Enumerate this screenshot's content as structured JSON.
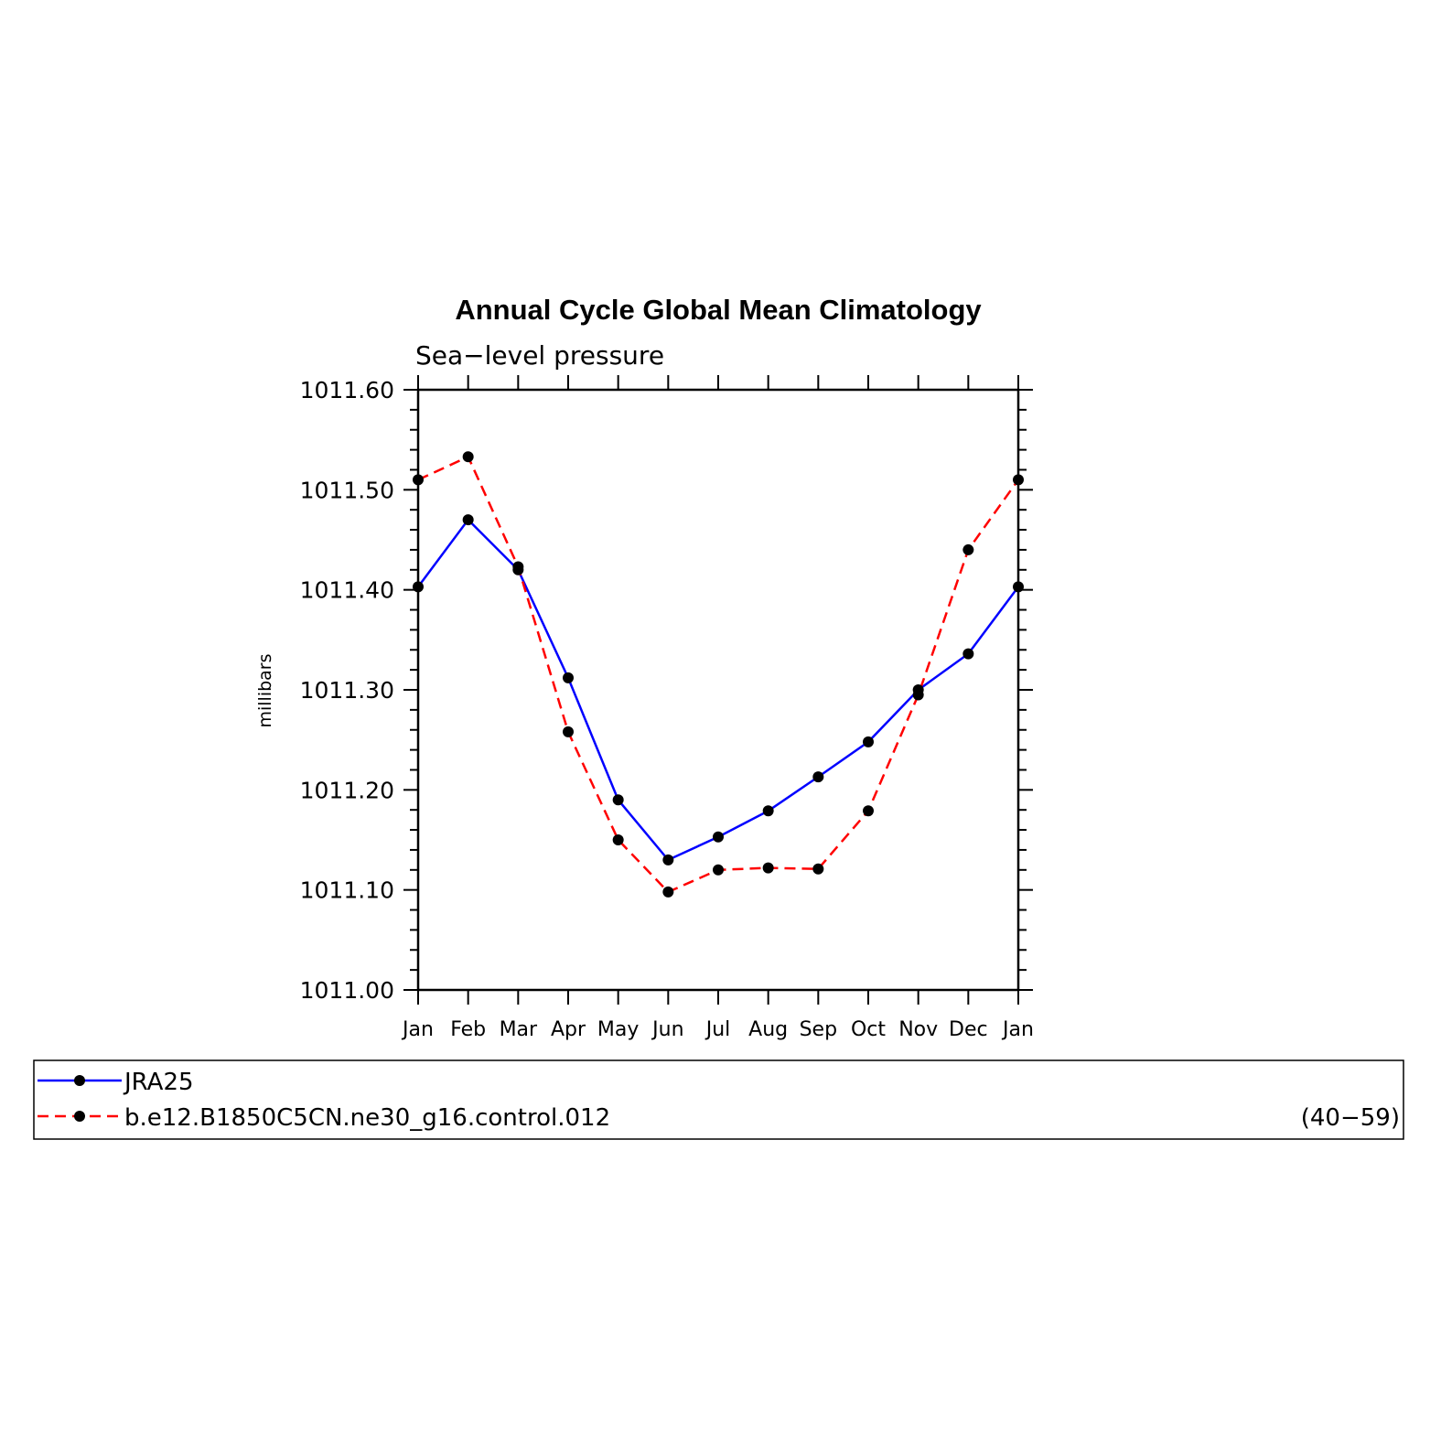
{
  "chart_data": {
    "type": "line",
    "title": "Annual Cycle Global Mean Climatology",
    "subtitle": "Sea−level pressure",
    "xlabel": "",
    "ylabel": "millibars",
    "categories": [
      "Jan",
      "Feb",
      "Mar",
      "Apr",
      "May",
      "Jun",
      "Jul",
      "Aug",
      "Sep",
      "Oct",
      "Nov",
      "Dec",
      "Jan"
    ],
    "ylim": [
      1011.0,
      1011.6
    ],
    "yticks": [
      "1011.00",
      "1011.10",
      "1011.20",
      "1011.30",
      "1011.40",
      "1011.50",
      "1011.60"
    ],
    "series": [
      {
        "name": "JRA25",
        "color": "#0000ff",
        "dashed": false,
        "values": [
          1011.403,
          1011.47,
          1011.42,
          1011.312,
          1011.19,
          1011.13,
          1011.153,
          1011.179,
          1011.213,
          1011.248,
          1011.3,
          1011.336,
          1011.403
        ]
      },
      {
        "name": "b.e12.B1850C5CN.ne30_g16.control.012",
        "color": "#ff0000",
        "dashed": true,
        "years": "(40−59)",
        "values": [
          1011.51,
          1011.533,
          1011.423,
          1011.258,
          1011.15,
          1011.098,
          1011.12,
          1011.122,
          1011.121,
          1011.179,
          1011.295,
          1011.44,
          1011.51
        ]
      }
    ],
    "legend": "bottom"
  }
}
